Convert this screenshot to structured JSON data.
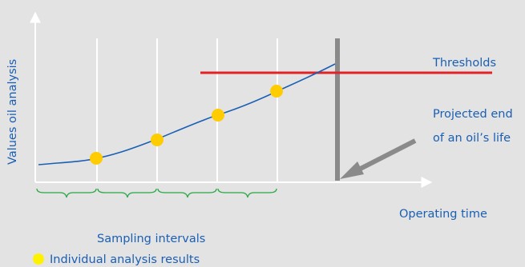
{
  "labels": {
    "y_axis": "Values oil analysis",
    "x_axis": "Operating time",
    "thresholds": "Thresholds",
    "projected_end_line1": "Projected end",
    "projected_end_line2": "of an oil’s life",
    "sampling_intervals": "Sampling intervals",
    "legend_results": "Individual analysis results"
  },
  "colors": {
    "background": "#e3e3e3",
    "curve": "#1a5fb4",
    "threshold": "#e32126",
    "marker": "#ffcc00",
    "legend_marker": "#fff200",
    "projection": "#8a8a8a",
    "brace": "#29a845",
    "text": "#1a5fb4",
    "axis": "#ffffff"
  },
  "diagram": {
    "sample_count": 4,
    "interval_count": 4
  }
}
